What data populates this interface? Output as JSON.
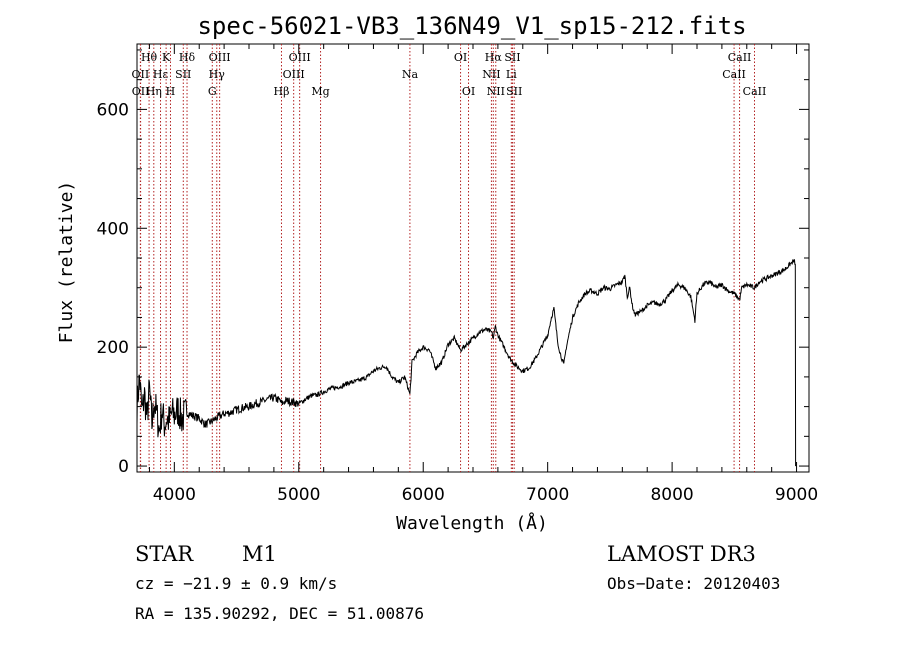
{
  "chart_data": {
    "type": "line",
    "title": "spec-56021-VB3_136N49_V1_sp15-212.fits",
    "xlabel": "Wavelength (Å)",
    "ylabel": "Flux (relative)",
    "xlim": [
      3700,
      9100
    ],
    "ylim": [
      -10,
      710
    ],
    "xticks": [
      4000,
      5000,
      6000,
      7000,
      8000,
      9000
    ],
    "yticks": [
      0,
      200,
      400,
      600
    ],
    "grid": false,
    "series": [
      {
        "name": "flux",
        "x": [
          3700,
          3720,
          3740,
          3760,
          3780,
          3800,
          3820,
          3840,
          3860,
          3880,
          3900,
          3920,
          3940,
          3960,
          3980,
          4000,
          4030,
          4060,
          4100,
          4150,
          4200,
          4250,
          4300,
          4350,
          4400,
          4450,
          4500,
          4550,
          4600,
          4650,
          4700,
          4750,
          4800,
          4850,
          4860,
          4900,
          4950,
          5000,
          5050,
          5100,
          5150,
          5200,
          5250,
          5300,
          5350,
          5400,
          5450,
          5500,
          5550,
          5600,
          5650,
          5700,
          5750,
          5800,
          5850,
          5880,
          5893,
          5910,
          5950,
          6000,
          6050,
          6100,
          6150,
          6200,
          6250,
          6300,
          6350,
          6400,
          6450,
          6500,
          6550,
          6563,
          6580,
          6600,
          6650,
          6700,
          6750,
          6800,
          6850,
          6900,
          6950,
          7000,
          7030,
          7050,
          7080,
          7100,
          7130,
          7150,
          7180,
          7200,
          7250,
          7300,
          7350,
          7400,
          7450,
          7500,
          7550,
          7600,
          7620,
          7640,
          7660,
          7680,
          7700,
          7750,
          7800,
          7850,
          7900,
          7950,
          8000,
          8050,
          8100,
          8150,
          8183,
          8200,
          8250,
          8300,
          8350,
          8400,
          8450,
          8500,
          8542,
          8560,
          8600,
          8662,
          8700,
          8750,
          8800,
          8850,
          8900,
          8950,
          8980,
          8990
        ],
        "y": [
          100,
          150,
          90,
          120,
          80,
          130,
          70,
          110,
          85,
          60,
          95,
          70,
          80,
          75,
          90,
          85,
          95,
          80,
          90,
          85,
          80,
          70,
          75,
          82,
          88,
          90,
          95,
          98,
          100,
          105,
          108,
          112,
          115,
          110,
          105,
          110,
          108,
          105,
          112,
          118,
          120,
          125,
          130,
          132,
          135,
          140,
          142,
          145,
          150,
          160,
          165,
          168,
          150,
          140,
          150,
          130,
          120,
          175,
          190,
          200,
          195,
          165,
          175,
          205,
          215,
          195,
          205,
          215,
          225,
          230,
          225,
          215,
          235,
          220,
          200,
          180,
          168,
          160,
          165,
          180,
          200,
          220,
          250,
          265,
          210,
          190,
          170,
          200,
          230,
          250,
          275,
          290,
          295,
          290,
          300,
          298,
          305,
          310,
          320,
          285,
          300,
          270,
          255,
          260,
          270,
          275,
          272,
          280,
          295,
          305,
          300,
          285,
          245,
          290,
          305,
          310,
          300,
          305,
          295,
          290,
          280,
          300,
          305,
          300,
          310,
          315,
          320,
          325,
          330,
          340,
          345,
          340
        ]
      }
    ],
    "lines": [
      {
        "name": "Hθ",
        "wave": 3797,
        "row": 0
      },
      {
        "name": "OII",
        "wave": 3727,
        "row": 1
      },
      {
        "name": "OII",
        "wave": 3729,
        "row": 2
      },
      {
        "name": "Hη",
        "wave": 3835,
        "row": 2
      },
      {
        "name": "Hε",
        "wave": 3889,
        "row": 1
      },
      {
        "name": "K",
        "wave": 3934,
        "row": 0
      },
      {
        "name": "H",
        "wave": 3969,
        "row": 2
      },
      {
        "name": "SII",
        "wave": 4072,
        "row": 1
      },
      {
        "name": "Hδ",
        "wave": 4102,
        "row": 0
      },
      {
        "name": "OIII",
        "wave": 4364,
        "row": 0
      },
      {
        "name": "Hγ",
        "wave": 4341,
        "row": 1
      },
      {
        "name": "G",
        "wave": 4305,
        "row": 2
      },
      {
        "name": "Hβ",
        "wave": 4861,
        "row": 2
      },
      {
        "name": "OIII",
        "wave": 4959,
        "row": 1
      },
      {
        "name": "OIII",
        "wave": 5007,
        "row": 0
      },
      {
        "name": "Mg",
        "wave": 5175,
        "row": 2
      },
      {
        "name": "Na",
        "wave": 5893,
        "row": 1
      },
      {
        "name": "OI",
        "wave": 6300,
        "row": 0
      },
      {
        "name": "OI",
        "wave": 6364,
        "row": 2
      },
      {
        "name": "Hα",
        "wave": 6563,
        "row": 0
      },
      {
        "name": "NII",
        "wave": 6548,
        "row": 1
      },
      {
        "name": "NII",
        "wave": 6583,
        "row": 2
      },
      {
        "name": "SII",
        "wave": 6717,
        "row": 0
      },
      {
        "name": "Li",
        "wave": 6708,
        "row": 1
      },
      {
        "name": "SII",
        "wave": 6731,
        "row": 2
      },
      {
        "name": "CaII",
        "wave": 8542,
        "row": 0
      },
      {
        "name": "CaII",
        "wave": 8498,
        "row": 1
      },
      {
        "name": "CaII",
        "wave": 8662,
        "row": 2
      }
    ]
  },
  "info": {
    "class": "STAR",
    "subclass": "M1",
    "cz": "cz = −21.9 ± 0.9 km/s",
    "radec": "RA = 135.90292, DEC =  51.00876",
    "survey": "LAMOST DR3",
    "obsdate": "Obs−Date: 20120403"
  },
  "colors": {
    "line_marker": "#b22222",
    "spectrum": "#000000",
    "axis": "#000000"
  }
}
